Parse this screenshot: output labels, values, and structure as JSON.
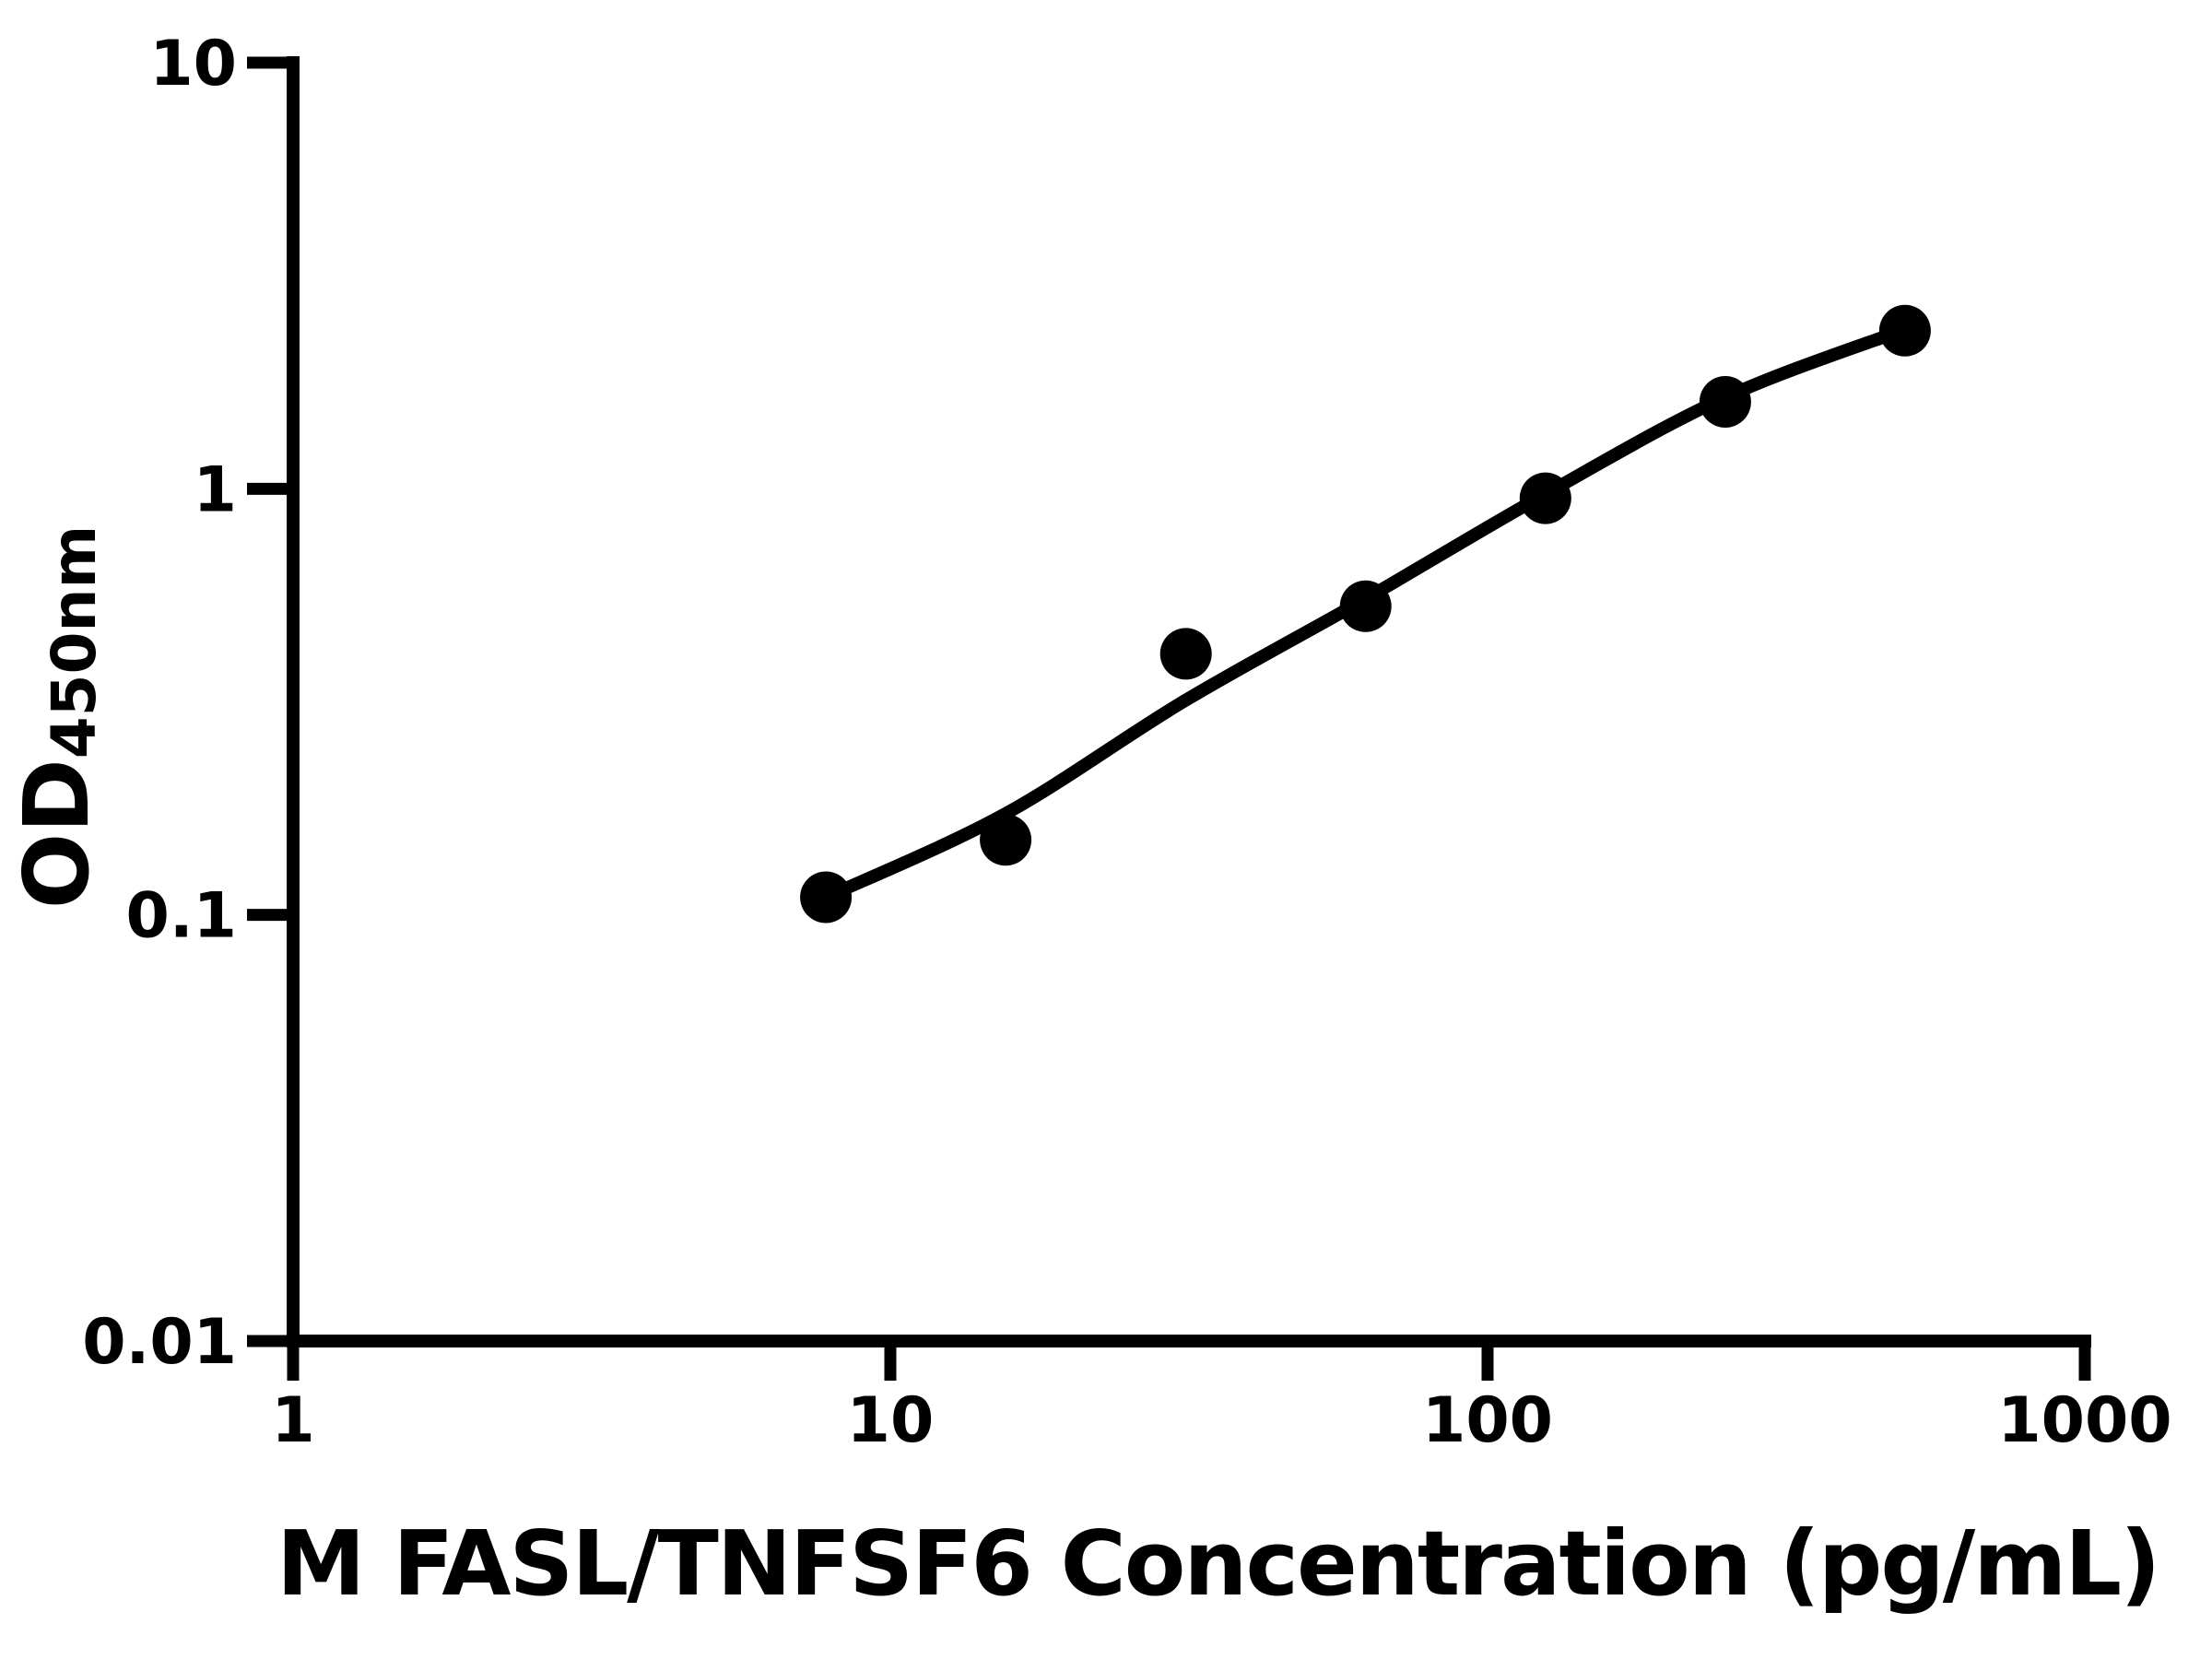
{
  "chart_data": {
    "type": "scatter",
    "title": "",
    "xlabel": "M FASL/TNFSF6 Concentration (pg/mL)",
    "ylabel_main": "OD",
    "ylabel_sub": "450nm",
    "x_scale": "log",
    "y_scale": "log",
    "xlim": [
      1,
      1000
    ],
    "ylim": [
      0.01,
      10
    ],
    "grid": false,
    "legend_position": "none",
    "x_ticks": [
      {
        "value": 1,
        "label": "1"
      },
      {
        "value": 10,
        "label": "10"
      },
      {
        "value": 100,
        "label": "100"
      },
      {
        "value": 1000,
        "label": "1000"
      }
    ],
    "y_ticks": [
      {
        "value": 10,
        "label": "10"
      },
      {
        "value": 1,
        "label": "1"
      },
      {
        "value": 0.1,
        "label": "0.1"
      },
      {
        "value": 0.01,
        "label": "0.01"
      }
    ],
    "points": [
      {
        "conc": 7.8,
        "od": 0.11
      },
      {
        "conc": 15.6,
        "od": 0.15
      },
      {
        "conc": 31.25,
        "od": 0.41
      },
      {
        "conc": 62.5,
        "od": 0.53
      },
      {
        "conc": 125,
        "od": 0.95
      },
      {
        "conc": 250,
        "od": 1.6
      },
      {
        "conc": 500,
        "od": 2.35
      }
    ],
    "fit_curve": [
      {
        "conc": 7.8,
        "od": 0.11
      },
      {
        "conc": 15.5,
        "od": 0.172
      },
      {
        "conc": 31.1,
        "od": 0.318
      },
      {
        "conc": 62.2,
        "od": 0.55
      },
      {
        "conc": 124,
        "od": 0.966
      },
      {
        "conc": 248,
        "od": 1.63
      },
      {
        "conc": 497,
        "od": 2.36
      }
    ],
    "colors": {
      "marker": "#000000",
      "line": "#000000",
      "axis": "#000000",
      "text": "#000000",
      "background": "#ffffff"
    }
  }
}
